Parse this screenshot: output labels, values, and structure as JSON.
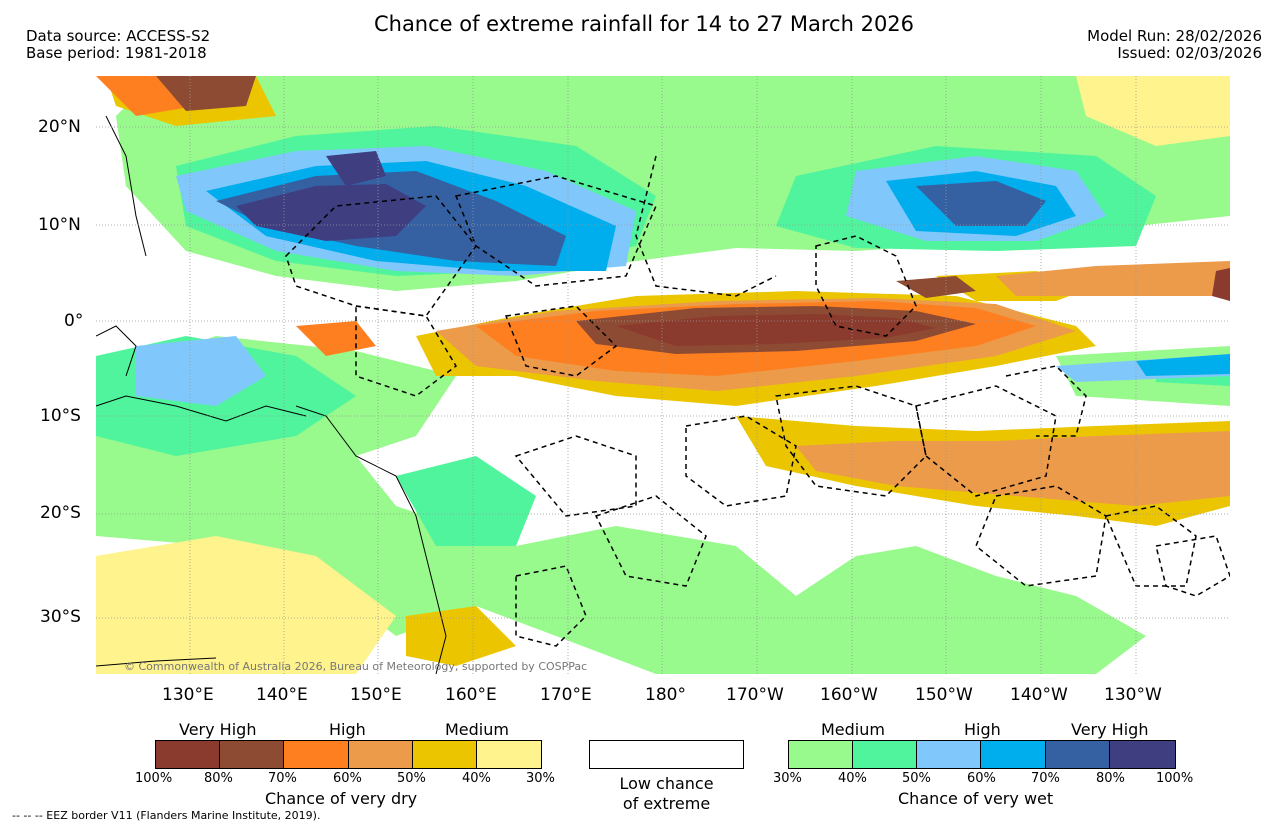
{
  "header": {
    "title": "Chance of extreme rainfall for 14 to 27 March 2026",
    "source_line1": "Data source: ACCESS-S2",
    "source_line2": "Base period: 1981-2018",
    "model_run": "Model Run: 28/02/2026",
    "issued": "Issued: 02/03/2026"
  },
  "map": {
    "lat_labels": [
      "20°N",
      "10°N",
      "0°",
      "10°S",
      "20°S",
      "30°S"
    ],
    "lon_labels": [
      "130°E",
      "140°E",
      "150°E",
      "160°E",
      "170°E",
      "180°",
      "170°W",
      "160°W",
      "150°W",
      "140°W",
      "130°W"
    ],
    "copyright": "© Commonwealth of Australia 2026, Bureau of Meteorology, supported by COSPPac",
    "eez_note": "-- -- -- EEZ border V11 (Flanders Marine Institute, 2019)."
  },
  "legend": {
    "dry": {
      "title": "Chance of very dry",
      "categories": [
        "Very High",
        "High",
        "Medium"
      ],
      "ticks": [
        "100%",
        "80%",
        "70%",
        "60%",
        "50%",
        "40%",
        "30%"
      ],
      "colors": [
        "#8b3a2e",
        "#8e4b33",
        "#fe7f20",
        "#ec9b4b",
        "#ebc600",
        "#fff38d"
      ]
    },
    "low": {
      "line1": "Low chance",
      "line2": "of extreme"
    },
    "wet": {
      "title": "Chance of very wet",
      "categories": [
        "Medium",
        "High",
        "Very High"
      ],
      "ticks": [
        "30%",
        "40%",
        "50%",
        "60%",
        "70%",
        "80%",
        "100%"
      ],
      "colors": [
        "#98f98c",
        "#4ff49c",
        "#80c8fb",
        "#00aded",
        "#3560a1",
        "#3e3e81"
      ]
    }
  }
}
